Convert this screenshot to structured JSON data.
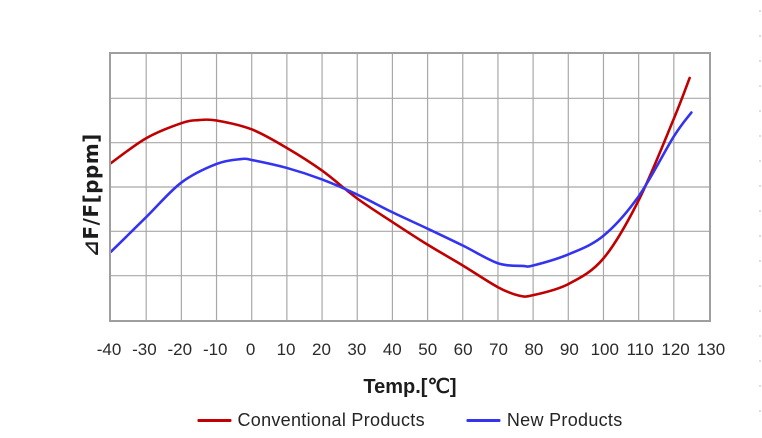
{
  "chart_data": {
    "type": "line",
    "title": "",
    "xlabel": "Temp.[℃]",
    "ylabel": "⊿F/F[ppm]",
    "xlim": [
      -40,
      130
    ],
    "x_ticks": [
      -40,
      -30,
      -20,
      -10,
      0,
      10,
      20,
      30,
      40,
      50,
      60,
      70,
      80,
      90,
      100,
      110,
      120,
      130
    ],
    "y_axis_note": "y axis unlabeled; values below are in grid units (1 unit = 1 horizontal gridline spacing, bottom axis = 0, top = 6)",
    "ylim_grid_units": [
      0,
      6
    ],
    "grid": true,
    "grid_rows": 6,
    "grid_cols": 17,
    "legend_position": "bottom",
    "series": [
      {
        "name": "Conventional Products",
        "color": "#c00000",
        "x": [
          -40,
          -30,
          -20,
          -15,
          -10,
          0,
          10,
          20,
          30,
          40,
          50,
          60,
          70,
          76,
          80,
          90,
          100,
          110,
          120,
          124.5
        ],
        "y": [
          3.54,
          4.1,
          4.44,
          4.51,
          4.5,
          4.3,
          3.88,
          3.37,
          2.74,
          2.21,
          1.7,
          1.23,
          0.74,
          0.55,
          0.56,
          0.81,
          1.39,
          2.7,
          4.54,
          5.46
        ]
      },
      {
        "name": "New Products",
        "color": "#3333f0",
        "x": [
          -40,
          -30,
          -20,
          -10,
          -3,
          0,
          10,
          20,
          30,
          40,
          50,
          60,
          70,
          77,
          80,
          90,
          100,
          110,
          120,
          125
        ],
        "y": [
          1.54,
          2.32,
          3.1,
          3.52,
          3.63,
          3.61,
          3.43,
          3.17,
          2.83,
          2.43,
          2.06,
          1.68,
          1.28,
          1.22,
          1.23,
          1.48,
          1.9,
          2.79,
          4.14,
          4.68
        ]
      }
    ]
  },
  "axis": {
    "x_tick_labels": [
      "-40",
      "-30",
      "-20",
      "-10",
      "0",
      "10",
      "20",
      "30",
      "40",
      "50",
      "60",
      "70",
      "80",
      "90",
      "100",
      "110",
      "120",
      "130"
    ],
    "x_title": "Temp.[℃]"
  },
  "y_label_parts": {
    "delta": "⊿",
    "rest": "F/F[ppm]"
  },
  "legend": {
    "items": [
      {
        "label": "Conventional Products",
        "color": "#c00000"
      },
      {
        "label": "New Products",
        "color": "#3333f0"
      }
    ]
  },
  "colors": {
    "gridline": "#a8a8a8",
    "plot_border": "#9f9f9f",
    "text": "#242424",
    "background": "#ffffff"
  }
}
